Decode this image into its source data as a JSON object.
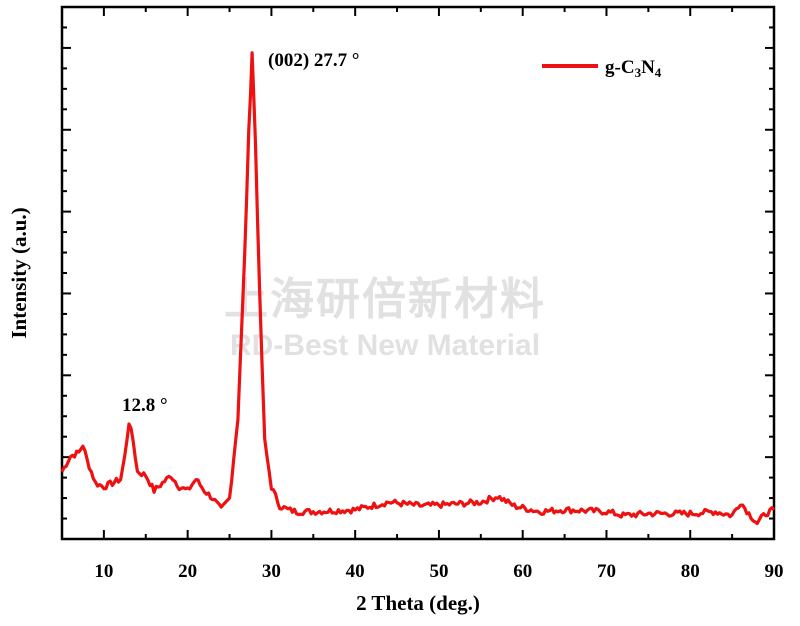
{
  "chart_data": {
    "type": "line",
    "xlabel": "2 Theta (deg.)",
    "ylabel": "Intensity (a.u.)",
    "xlim": [
      5,
      90
    ],
    "x_ticks": [
      "10",
      "20",
      "30",
      "40",
      "50",
      "60",
      "70",
      "80",
      "90"
    ],
    "y_tick_labels_shown": false,
    "legend_position": "top-right",
    "series": [
      {
        "name": "g-C3N4",
        "color": "#ee1111",
        "x": [
          5,
          6,
          7,
          7.5,
          8,
          9,
          10,
          11,
          12,
          12.5,
          13,
          13.5,
          14,
          15,
          16,
          17,
          18,
          19,
          20,
          21,
          22,
          23,
          24,
          25,
          26,
          26.8,
          27.3,
          27.7,
          28.1,
          28.6,
          29.2,
          30,
          31,
          32,
          33,
          35,
          40,
          44,
          48,
          52,
          55,
          57,
          59,
          62,
          65,
          70,
          72,
          75,
          80,
          83,
          85,
          86,
          87,
          88,
          89,
          90
        ],
        "y": [
          14,
          18,
          19,
          21,
          17,
          11,
          10,
          11,
          12,
          18,
          27,
          22,
          14,
          13,
          9,
          11,
          13,
          10,
          9,
          12,
          9,
          7,
          4,
          7,
          28,
          70,
          103,
          124,
          100,
          60,
          22,
          10,
          5,
          4,
          3.5,
          3.5,
          4,
          6,
          5,
          5.5,
          6,
          7.5,
          5,
          3.5,
          4,
          3.5,
          2.5,
          3,
          3,
          3.5,
          2.5,
          6,
          3,
          0.5,
          3,
          4
        ]
      }
    ],
    "annotations": [
      {
        "text": "(002) 27.7 °",
        "x": 27.7
      },
      {
        "text": "12.8 °",
        "x": 12.8
      }
    ]
  },
  "legend": {
    "label_prefix": "g-C",
    "sub1": "3",
    "label_mid": "N",
    "sub2": "4"
  },
  "watermark": {
    "line1": "上海研倍新材料",
    "line2": "RD-Best New Material"
  }
}
